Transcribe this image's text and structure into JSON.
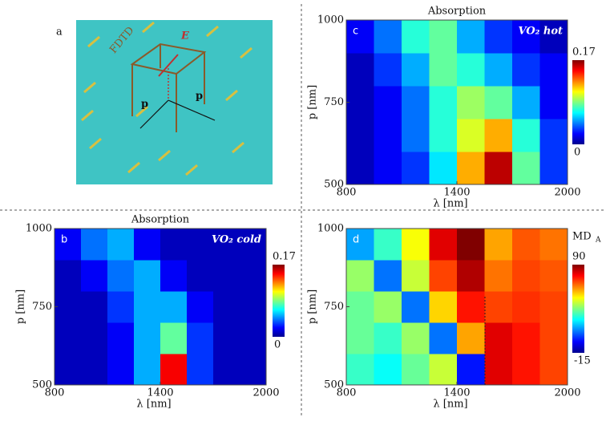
{
  "schematic": {
    "label": "a",
    "text": "FDTD",
    "field": "E",
    "period_labels": [
      "p",
      "p"
    ]
  },
  "chart_data": [
    {
      "type": "heatmap",
      "title": "Absorption",
      "panel": "c",
      "annotation": "VO₂ hot",
      "x_label": "λ [nm]",
      "y_label": "p [nm]",
      "x": [
        875,
        1025,
        1175,
        1325,
        1475,
        1625,
        1775,
        1925
      ],
      "y": [
        550,
        650,
        750,
        850,
        950
      ],
      "z": [
        [
          0.01,
          0.02,
          0.03,
          0.06,
          0.12,
          0.16,
          0.08,
          0.03
        ],
        [
          0.01,
          0.02,
          0.04,
          0.07,
          0.1,
          0.12,
          0.07,
          0.03
        ],
        [
          0.01,
          0.02,
          0.04,
          0.07,
          0.09,
          0.08,
          0.05,
          0.02
        ],
        [
          0.01,
          0.03,
          0.05,
          0.08,
          0.07,
          0.05,
          0.03,
          0.02
        ],
        [
          0.02,
          0.04,
          0.07,
          0.08,
          0.05,
          0.03,
          0.02,
          0.01
        ]
      ],
      "xlim": [
        800,
        2000
      ],
      "xticks": [
        800,
        1400,
        2000
      ],
      "ylim": [
        500,
        1000
      ],
      "yticks": [
        500,
        750,
        1000
      ],
      "zlim": [
        0,
        0.17
      ],
      "zticks": [
        0,
        0.17
      ],
      "colormap": "jet"
    },
    {
      "type": "heatmap",
      "title": "Absorption",
      "panel": "b",
      "annotation": "VO₂ cold",
      "x_label": "λ [nm]",
      "y_label": "p [nm]",
      "x": [
        875,
        1025,
        1175,
        1325,
        1475,
        1625,
        1775,
        1925
      ],
      "y": [
        550,
        650,
        750,
        850,
        950
      ],
      "z": [
        [
          0.01,
          0.01,
          0.02,
          0.05,
          0.15,
          0.03,
          0.01,
          0.01
        ],
        [
          0.01,
          0.01,
          0.02,
          0.05,
          0.08,
          0.03,
          0.01,
          0.01
        ],
        [
          0.01,
          0.01,
          0.03,
          0.05,
          0.05,
          0.02,
          0.01,
          0.01
        ],
        [
          0.01,
          0.02,
          0.04,
          0.05,
          0.02,
          0.01,
          0.01,
          0.01
        ],
        [
          0.02,
          0.04,
          0.05,
          0.02,
          0.01,
          0.01,
          0.01,
          0.01
        ]
      ],
      "xlim": [
        800,
        2000
      ],
      "xticks": [
        800,
        1400,
        2000
      ],
      "ylim": [
        500,
        1000
      ],
      "yticks": [
        500,
        750,
        1000
      ],
      "zlim": [
        0,
        0.17
      ],
      "zticks": [
        0,
        0.17
      ],
      "colormap": "jet"
    },
    {
      "type": "heatmap",
      "panel": "d",
      "colorbar_label": {
        "text": "MD",
        "sub": "A"
      },
      "x_label": "λ [nm]",
      "y_label": "p [nm]",
      "x": [
        875,
        1025,
        1175,
        1325,
        1475,
        1625,
        1775,
        1925
      ],
      "y": [
        550,
        650,
        750,
        850,
        950
      ],
      "z": [
        [
          30,
          25,
          35,
          45,
          0,
          80,
          75,
          70
        ],
        [
          35,
          30,
          40,
          10,
          60,
          80,
          75,
          70
        ],
        [
          35,
          40,
          10,
          55,
          75,
          70,
          72,
          70
        ],
        [
          40,
          10,
          45,
          70,
          85,
          65,
          70,
          68
        ],
        [
          15,
          30,
          50,
          80,
          90,
          60,
          68,
          65
        ]
      ],
      "xlim": [
        800,
        2000
      ],
      "xticks": [
        800,
        1400,
        2000
      ],
      "ylim": [
        500,
        1000
      ],
      "yticks": [
        500,
        750,
        1000
      ],
      "zlim": [
        -15,
        90
      ],
      "zticks": [
        -15,
        90
      ],
      "colormap": "jet"
    }
  ]
}
